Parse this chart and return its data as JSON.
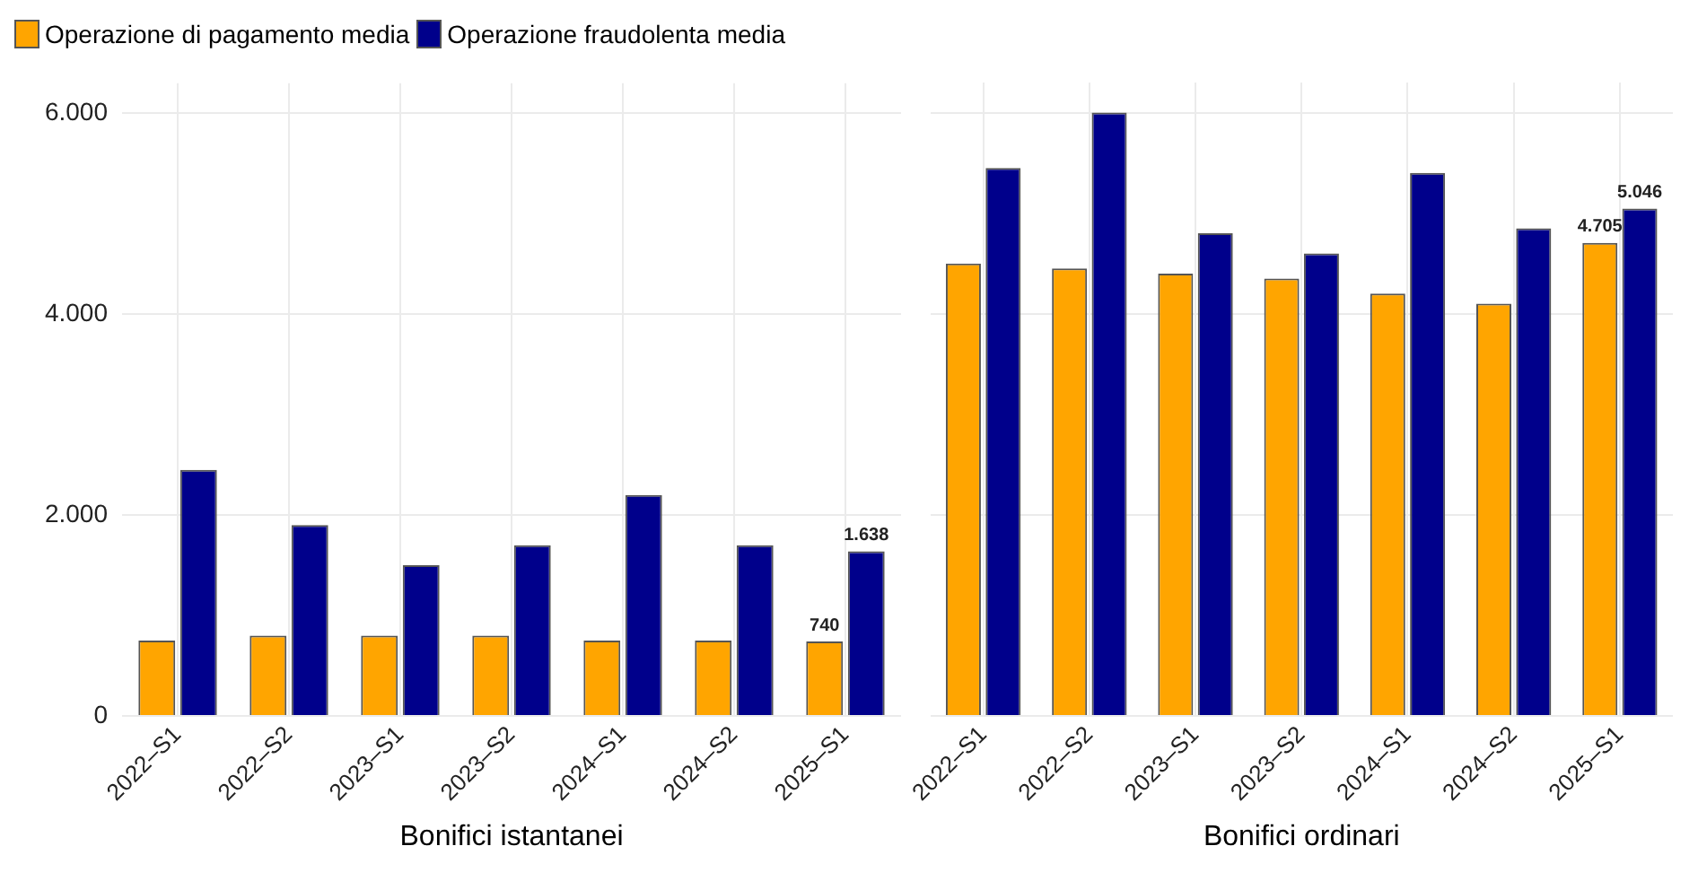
{
  "chart_data": [
    {
      "type": "bar",
      "xlabel": "Bonifici istantanei",
      "categories": [
        "2022–S1",
        "2022–S2",
        "2023–S1",
        "2023–S2",
        "2024–S1",
        "2024–S2",
        "2025–S1"
      ],
      "series": [
        {
          "name": "Operazione di pagamento media",
          "color": "#ffa500",
          "values": [
            750,
            800,
            800,
            800,
            750,
            750,
            740
          ],
          "value_labels": [
            null,
            null,
            null,
            null,
            null,
            null,
            "740"
          ]
        },
        {
          "name": "Operazione fraudolenta media",
          "color": "#00008b",
          "values": [
            2450,
            1900,
            1500,
            1700,
            2200,
            1700,
            1638
          ],
          "value_labels": [
            null,
            null,
            null,
            null,
            null,
            null,
            "1.638"
          ]
        }
      ],
      "ylim": [
        0,
        6300
      ],
      "yticks": [
        0,
        {
          "value": 2000,
          "label": "2.000"
        },
        {
          "value": 4000,
          "label": "4.000"
        },
        {
          "value": 6000,
          "label": "6.000"
        }
      ],
      "grid": true,
      "legend": "top left"
    },
    {
      "type": "bar",
      "xlabel": "Bonifici ordinari",
      "categories": [
        "2022–S1",
        "2022–S2",
        "2023–S1",
        "2023–S2",
        "2024–S1",
        "2024–S2",
        "2025–S1"
      ],
      "series": [
        {
          "color": "#ffa500",
          "values": [
            4500,
            4450,
            4400,
            4350,
            4200,
            4100,
            4705
          ],
          "value_labels": [
            null,
            null,
            null,
            null,
            null,
            null,
            "4.705"
          ]
        },
        {
          "color": "#00008b",
          "values": [
            5450,
            6000,
            4800,
            4600,
            5400,
            4850,
            5046
          ],
          "value_labels": [
            null,
            null,
            null,
            null,
            null,
            null,
            "5.046"
          ]
        }
      ],
      "ylim": [
        0,
        6300
      ],
      "yticks": [
        {
          "value": 0,
          "label": null
        },
        {
          "value": 2000,
          "label": null
        },
        {
          "value": 4000,
          "label": null
        },
        {
          "value": 6000,
          "label": null
        }
      ],
      "grid": true,
      "tick_labels": "x"
    }
  ]
}
